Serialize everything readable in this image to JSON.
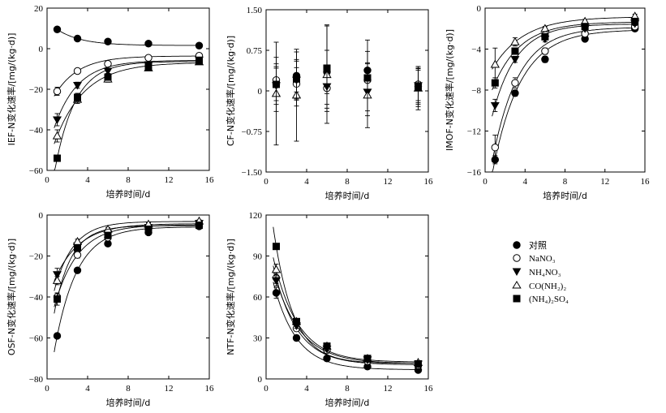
{
  "legend": [
    {
      "marker": "filled-circle",
      "label": "对照"
    },
    {
      "marker": "open-circle",
      "label": "NaNO₃"
    },
    {
      "marker": "filled-triangle-down",
      "label": "NH₄NO₃"
    },
    {
      "marker": "open-triangle-up",
      "label": "CO(NH₂)₂"
    },
    {
      "marker": "filled-square",
      "label": "(NH₄)₂SO₄"
    }
  ],
  "chart_data": [
    {
      "type": "scatter",
      "ylabel": "IEF-N变化速率/[mg/(kg·d)]",
      "xlabel": "培养时间/d",
      "xlim": [
        0,
        16
      ],
      "ylim": [
        -60,
        20
      ],
      "xticks": [
        0,
        4,
        8,
        12,
        16
      ],
      "yticks": [
        -60,
        -40,
        -20,
        0,
        20
      ],
      "ytick_labels": [
        "−60",
        "−40",
        "−20",
        "0",
        "20"
      ],
      "x": [
        1,
        3,
        6,
        10,
        15
      ],
      "series": [
        {
          "name": "对照",
          "values": [
            9.5,
            5,
            3.5,
            2.5,
            1.5
          ],
          "err": [
            0.8,
            0.8,
            0.6,
            0.5,
            0.5
          ]
        },
        {
          "name": "NaNO₃",
          "values": [
            -21,
            -11,
            -7.5,
            -4.5,
            -3.5
          ],
          "err": [
            2,
            1.2,
            1,
            0.8,
            0.6
          ]
        },
        {
          "name": "NH₄NO₃",
          "values": [
            -35,
            -18,
            -11,
            -8,
            -5.5
          ],
          "err": [
            3,
            1.5,
            1.2,
            1,
            0.8
          ]
        },
        {
          "name": "CO(NH₂)₂",
          "values": [
            -43,
            -25,
            -15,
            -9.5,
            -6.5
          ],
          "err": [
            3,
            2,
            1.5,
            1.2,
            1
          ]
        },
        {
          "name": "(NH₄)₂SO₄",
          "values": [
            -54,
            -24,
            -14,
            -9,
            -6
          ],
          "err": [
            1.5,
            2,
            1.5,
            1.2,
            1
          ]
        }
      ]
    },
    {
      "type": "scatter",
      "ylabel": "CF-N变化速率/[mg/(kg·d)]",
      "xlabel": "培养时间/d",
      "xlim": [
        0,
        16
      ],
      "ylim": [
        -1.5,
        1.5
      ],
      "xticks": [
        0,
        4,
        8,
        12,
        16
      ],
      "yticks": [
        -1.5,
        -0.75,
        0,
        0.75,
        1.5
      ],
      "ytick_labels": [
        "−1.50",
        "−0.75",
        "0",
        "0.75",
        "1.50"
      ],
      "x": [
        1,
        3,
        6,
        10,
        15
      ],
      "series": [
        {
          "name": "对照",
          "values": [
            0.12,
            0.28,
            0.35,
            0.38,
            0.08
          ],
          "err": [
            0.3,
            0.3,
            0.4,
            0.35,
            0.3
          ]
        },
        {
          "name": "NaNO₃",
          "values": [
            0.2,
            0.13,
            0.05,
            0.2,
            0.12
          ],
          "err": [
            0.3,
            0.3,
            0.3,
            0.3,
            0.3
          ]
        },
        {
          "name": "NH₄NO₃",
          "values": [
            0.1,
            0.2,
            0.08,
            -0.02,
            0.1
          ],
          "err": [
            0.35,
            0.35,
            0.4,
            0.35,
            0.35
          ]
        },
        {
          "name": "CO(NH₂)₂",
          "values": [
            -0.05,
            -0.08,
            0.3,
            -0.08,
            0.05
          ],
          "err": [
            0.95,
            0.85,
            0.9,
            0.6,
            0.4
          ]
        },
        {
          "name": "(NH₄)₂SO₄",
          "values": [
            0.12,
            0.22,
            0.42,
            0.24,
            0.06
          ],
          "err": [
            0.5,
            0.5,
            0.8,
            0.7,
            0.35
          ]
        }
      ]
    },
    {
      "type": "scatter",
      "ylabel": "IMOF-N变化速率/[mg/(kg·d)]",
      "xlabel": "培养时间/d",
      "xlim": [
        0,
        16
      ],
      "ylim": [
        -16,
        0
      ],
      "xticks": [
        0,
        4,
        8,
        12,
        16
      ],
      "yticks": [
        -16,
        -12,
        -8,
        -4,
        0
      ],
      "ytick_labels": [
        "−16",
        "−12",
        "−8",
        "−4",
        "0"
      ],
      "x": [
        1,
        3,
        6,
        10,
        15
      ],
      "series": [
        {
          "name": "对照",
          "values": [
            -14.8,
            -8.3,
            -5,
            -3,
            -2
          ],
          "err": [
            0.4,
            0.3,
            0.3,
            0.2,
            0.2
          ]
        },
        {
          "name": "NaNO₃",
          "values": [
            -13.6,
            -7.3,
            -4.2,
            -2.5,
            -1.8
          ],
          "err": [
            1.2,
            0.5,
            0.3,
            0.2,
            0.2
          ]
        },
        {
          "name": "NH₄NO₃",
          "values": [
            -9.5,
            -5,
            -3,
            -2,
            -1.5
          ],
          "err": [
            0.6,
            0.3,
            0.3,
            0.2,
            0.2
          ]
        },
        {
          "name": "CO(NH₂)₂",
          "values": [
            -5.5,
            -3.3,
            -2,
            -1.3,
            -0.8
          ],
          "err": [
            1.6,
            0.4,
            0.2,
            0.2,
            0.2
          ]
        },
        {
          "name": "(NH₄)₂SO₄",
          "values": [
            -7.3,
            -4.2,
            -2.8,
            -1.8,
            -1.3
          ],
          "err": [
            0.5,
            0.3,
            0.2,
            0.2,
            0.2
          ]
        }
      ]
    },
    {
      "type": "scatter",
      "ylabel": "OSF-N变化速率/[mg/(kg·d)]",
      "xlabel": "培养时间/d",
      "xlim": [
        0,
        16
      ],
      "ylim": [
        -80,
        0
      ],
      "xticks": [
        0,
        4,
        8,
        12,
        16
      ],
      "yticks": [
        -80,
        -60,
        -40,
        -20,
        0
      ],
      "ytick_labels": [
        "−80",
        "−60",
        "−40",
        "−20",
        "0"
      ],
      "x": [
        1,
        3,
        6,
        10,
        15
      ],
      "series": [
        {
          "name": "对照",
          "values": [
            -59,
            -27,
            -14,
            -8.5,
            -5.5
          ],
          "err": [
            1,
            1.2,
            1,
            1,
            0.8
          ]
        },
        {
          "name": "NaNO₃",
          "values": [
            -40,
            -19.5,
            -11,
            -7,
            -4.5
          ],
          "err": [
            2,
            1.5,
            1,
            1,
            0.8
          ]
        },
        {
          "name": "NH₄NO₃",
          "values": [
            -29,
            -15,
            -9,
            -6,
            -4
          ],
          "err": [
            3,
            1.5,
            1,
            0.8,
            0.8
          ]
        },
        {
          "name": "CO(NH₂)₂",
          "values": [
            -32,
            -13,
            -7,
            -4.5,
            -3
          ],
          "err": [
            2,
            1.2,
            0.8,
            0.8,
            0.6
          ]
        },
        {
          "name": "(NH₄)₂SO₄",
          "values": [
            -41,
            -16,
            -10,
            -7,
            -5
          ],
          "err": [
            3,
            1.5,
            1,
            0.8,
            0.8
          ]
        }
      ]
    },
    {
      "type": "scatter",
      "ylabel": "NTF-N变化速率/[mg/(kg·d)]",
      "xlabel": "培养时间/d",
      "xlim": [
        0,
        16
      ],
      "ylim": [
        0,
        120
      ],
      "xticks": [
        0,
        4,
        8,
        12,
        16
      ],
      "yticks": [
        0,
        30,
        60,
        90,
        120
      ],
      "ytick_labels": [
        "0",
        "30",
        "60",
        "90",
        "120"
      ],
      "x": [
        1,
        3,
        6,
        10,
        15
      ],
      "series": [
        {
          "name": "对照",
          "values": [
            63,
            30,
            15,
            9,
            6.5
          ],
          "err": [
            4,
            2,
            1,
            1,
            0.8
          ]
        },
        {
          "name": "NaNO₃",
          "values": [
            74,
            37,
            21,
            13,
            10
          ],
          "err": [
            4,
            2,
            1.5,
            1,
            1
          ]
        },
        {
          "name": "NH₄NO₃",
          "values": [
            72,
            39,
            22,
            14,
            11
          ],
          "err": [
            4,
            2,
            1.5,
            1,
            1
          ]
        },
        {
          "name": "CO(NH₂)₂",
          "values": [
            80,
            42,
            24,
            15,
            12
          ],
          "err": [
            4,
            2,
            1.5,
            1,
            1
          ]
        },
        {
          "name": "(NH₄)₂SO₄",
          "values": [
            97,
            42,
            24,
            15,
            11
          ],
          "err": [
            2,
            2,
            1.5,
            1,
            1
          ]
        }
      ]
    }
  ]
}
